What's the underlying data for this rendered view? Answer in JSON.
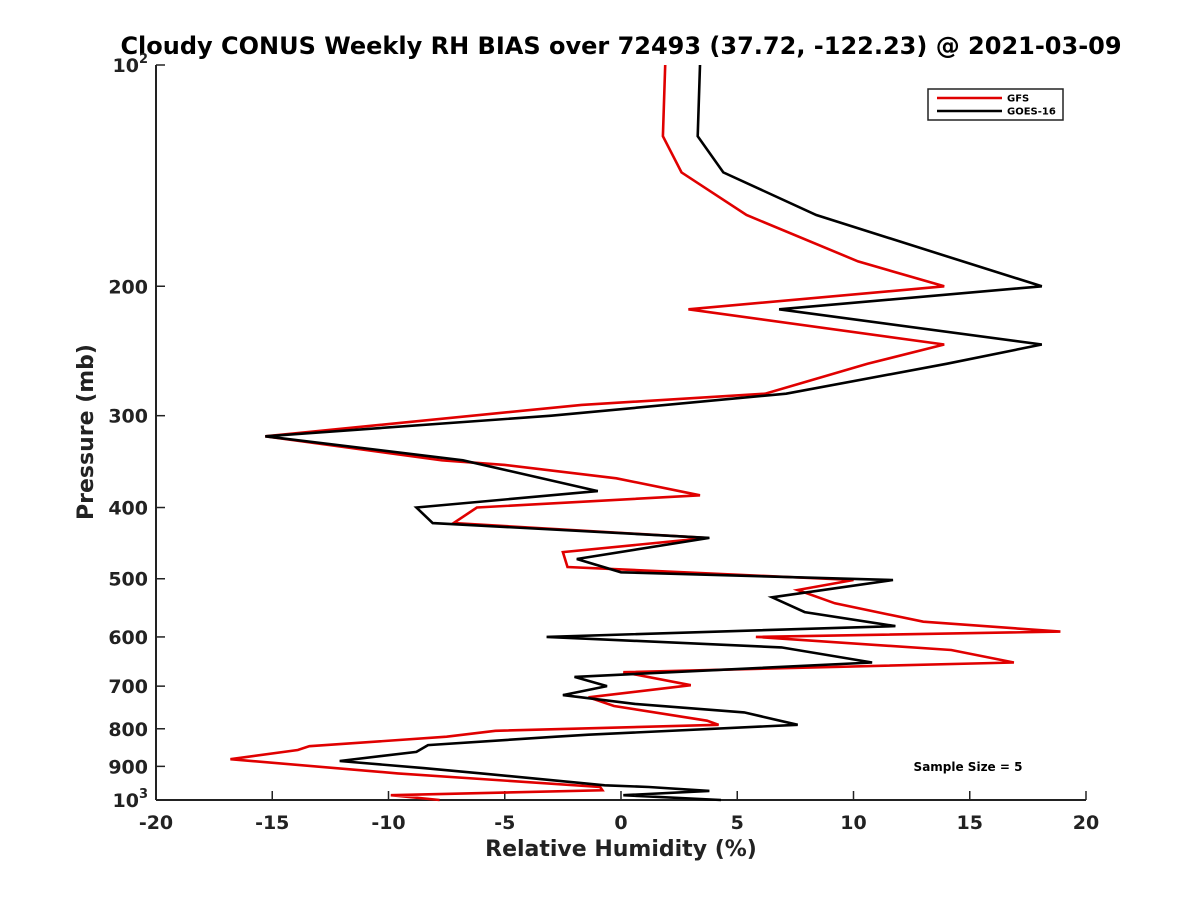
{
  "chart_data": {
    "type": "line",
    "title": "Cloudy CONUS Weekly RH BIAS over 72493 (37.72, -122.23) @ 2021-03-09",
    "xlabel": "Relative Humidity (%)",
    "ylabel": "Pressure (mb)",
    "xlim": [
      -20,
      20
    ],
    "ylim": [
      100,
      1000
    ],
    "y_scale": "log",
    "y_reversed": true,
    "grid": false,
    "legend_position": "top-right",
    "x_ticks": [
      "-20",
      "-15",
      "-10",
      "-5",
      "0",
      "5",
      "10",
      "15",
      "20"
    ],
    "y_ticks": [
      {
        "value": 100,
        "base": "10",
        "sup": "2"
      },
      {
        "value": 200,
        "base": "200",
        "sup": ""
      },
      {
        "value": 300,
        "base": "300",
        "sup": ""
      },
      {
        "value": 400,
        "base": "400",
        "sup": ""
      },
      {
        "value": 500,
        "base": "500",
        "sup": ""
      },
      {
        "value": 600,
        "base": "600",
        "sup": ""
      },
      {
        "value": 700,
        "base": "700",
        "sup": ""
      },
      {
        "value": 800,
        "base": "800",
        "sup": ""
      },
      {
        "value": 900,
        "base": "900",
        "sup": ""
      },
      {
        "value": 1000,
        "base": "10",
        "sup": "3"
      }
    ],
    "annotation": "Sample Size = 5",
    "series": [
      {
        "name": "GFS",
        "color": "#e00000",
        "points": [
          [
            1.9,
            100
          ],
          [
            1.8,
            125
          ],
          [
            2.6,
            140
          ],
          [
            5.4,
            160
          ],
          [
            10.2,
            185
          ],
          [
            13.9,
            200
          ],
          [
            2.9,
            215
          ],
          [
            13.9,
            240
          ],
          [
            10.6,
            255
          ],
          [
            6.2,
            280
          ],
          [
            -1.7,
            290
          ],
          [
            -15.3,
            320
          ],
          [
            -7.7,
            345
          ],
          [
            -5.0,
            350
          ],
          [
            -0.2,
            365
          ],
          [
            3.4,
            385
          ],
          [
            -6.2,
            400
          ],
          [
            -7.2,
            420
          ],
          [
            3.7,
            440
          ],
          [
            -2.5,
            460
          ],
          [
            -2.3,
            482
          ],
          [
            10.0,
            502
          ],
          [
            7.6,
            518
          ],
          [
            9.2,
            540
          ],
          [
            13.0,
            572
          ],
          [
            18.9,
            590
          ],
          [
            5.8,
            600
          ],
          [
            14.2,
            625
          ],
          [
            16.9,
            650
          ],
          [
            0.1,
            670
          ],
          [
            3.0,
            698
          ],
          [
            -1.4,
            725
          ],
          [
            -0.3,
            745
          ],
          [
            3.7,
            780
          ],
          [
            4.2,
            790
          ],
          [
            -5.4,
            805
          ],
          [
            -7.5,
            820
          ],
          [
            -13.4,
            845
          ],
          [
            -13.9,
            855
          ],
          [
            -16.8,
            880
          ],
          [
            -9.6,
            920
          ],
          [
            -0.9,
            960
          ],
          [
            -0.8,
            970
          ],
          [
            -9.9,
            985
          ],
          [
            -7.8,
            1000
          ]
        ]
      },
      {
        "name": "GOES-16",
        "color": "#000000",
        "points": [
          [
            3.4,
            100
          ],
          [
            3.3,
            125
          ],
          [
            4.4,
            140
          ],
          [
            8.4,
            160
          ],
          [
            14.7,
            185
          ],
          [
            18.1,
            200
          ],
          [
            6.8,
            215
          ],
          [
            18.1,
            240
          ],
          [
            14.0,
            255
          ],
          [
            7.1,
            280
          ],
          [
            -3.0,
            300
          ],
          [
            -15.3,
            320
          ],
          [
            -6.8,
            345
          ],
          [
            -1.0,
            380
          ],
          [
            -8.8,
            400
          ],
          [
            -8.1,
            420
          ],
          [
            3.8,
            440
          ],
          [
            -1.9,
            470
          ],
          [
            0.0,
            490
          ],
          [
            11.7,
            502
          ],
          [
            6.5,
            530
          ],
          [
            7.9,
            555
          ],
          [
            11.8,
            580
          ],
          [
            -3.2,
            600
          ],
          [
            6.9,
            620
          ],
          [
            10.8,
            650
          ],
          [
            -2.0,
            680
          ],
          [
            -0.6,
            700
          ],
          [
            -2.5,
            720
          ],
          [
            0.6,
            740
          ],
          [
            5.3,
            760
          ],
          [
            7.6,
            790
          ],
          [
            -1.4,
            815
          ],
          [
            -2.8,
            820
          ],
          [
            -8.3,
            842
          ],
          [
            -8.8,
            860
          ],
          [
            -12.1,
            885
          ],
          [
            -8.5,
            905
          ],
          [
            -6.0,
            920
          ],
          [
            -0.7,
            955
          ],
          [
            1.2,
            960
          ],
          [
            3.8,
            972
          ],
          [
            0.1,
            985
          ],
          [
            4.3,
            1000
          ]
        ]
      }
    ]
  }
}
